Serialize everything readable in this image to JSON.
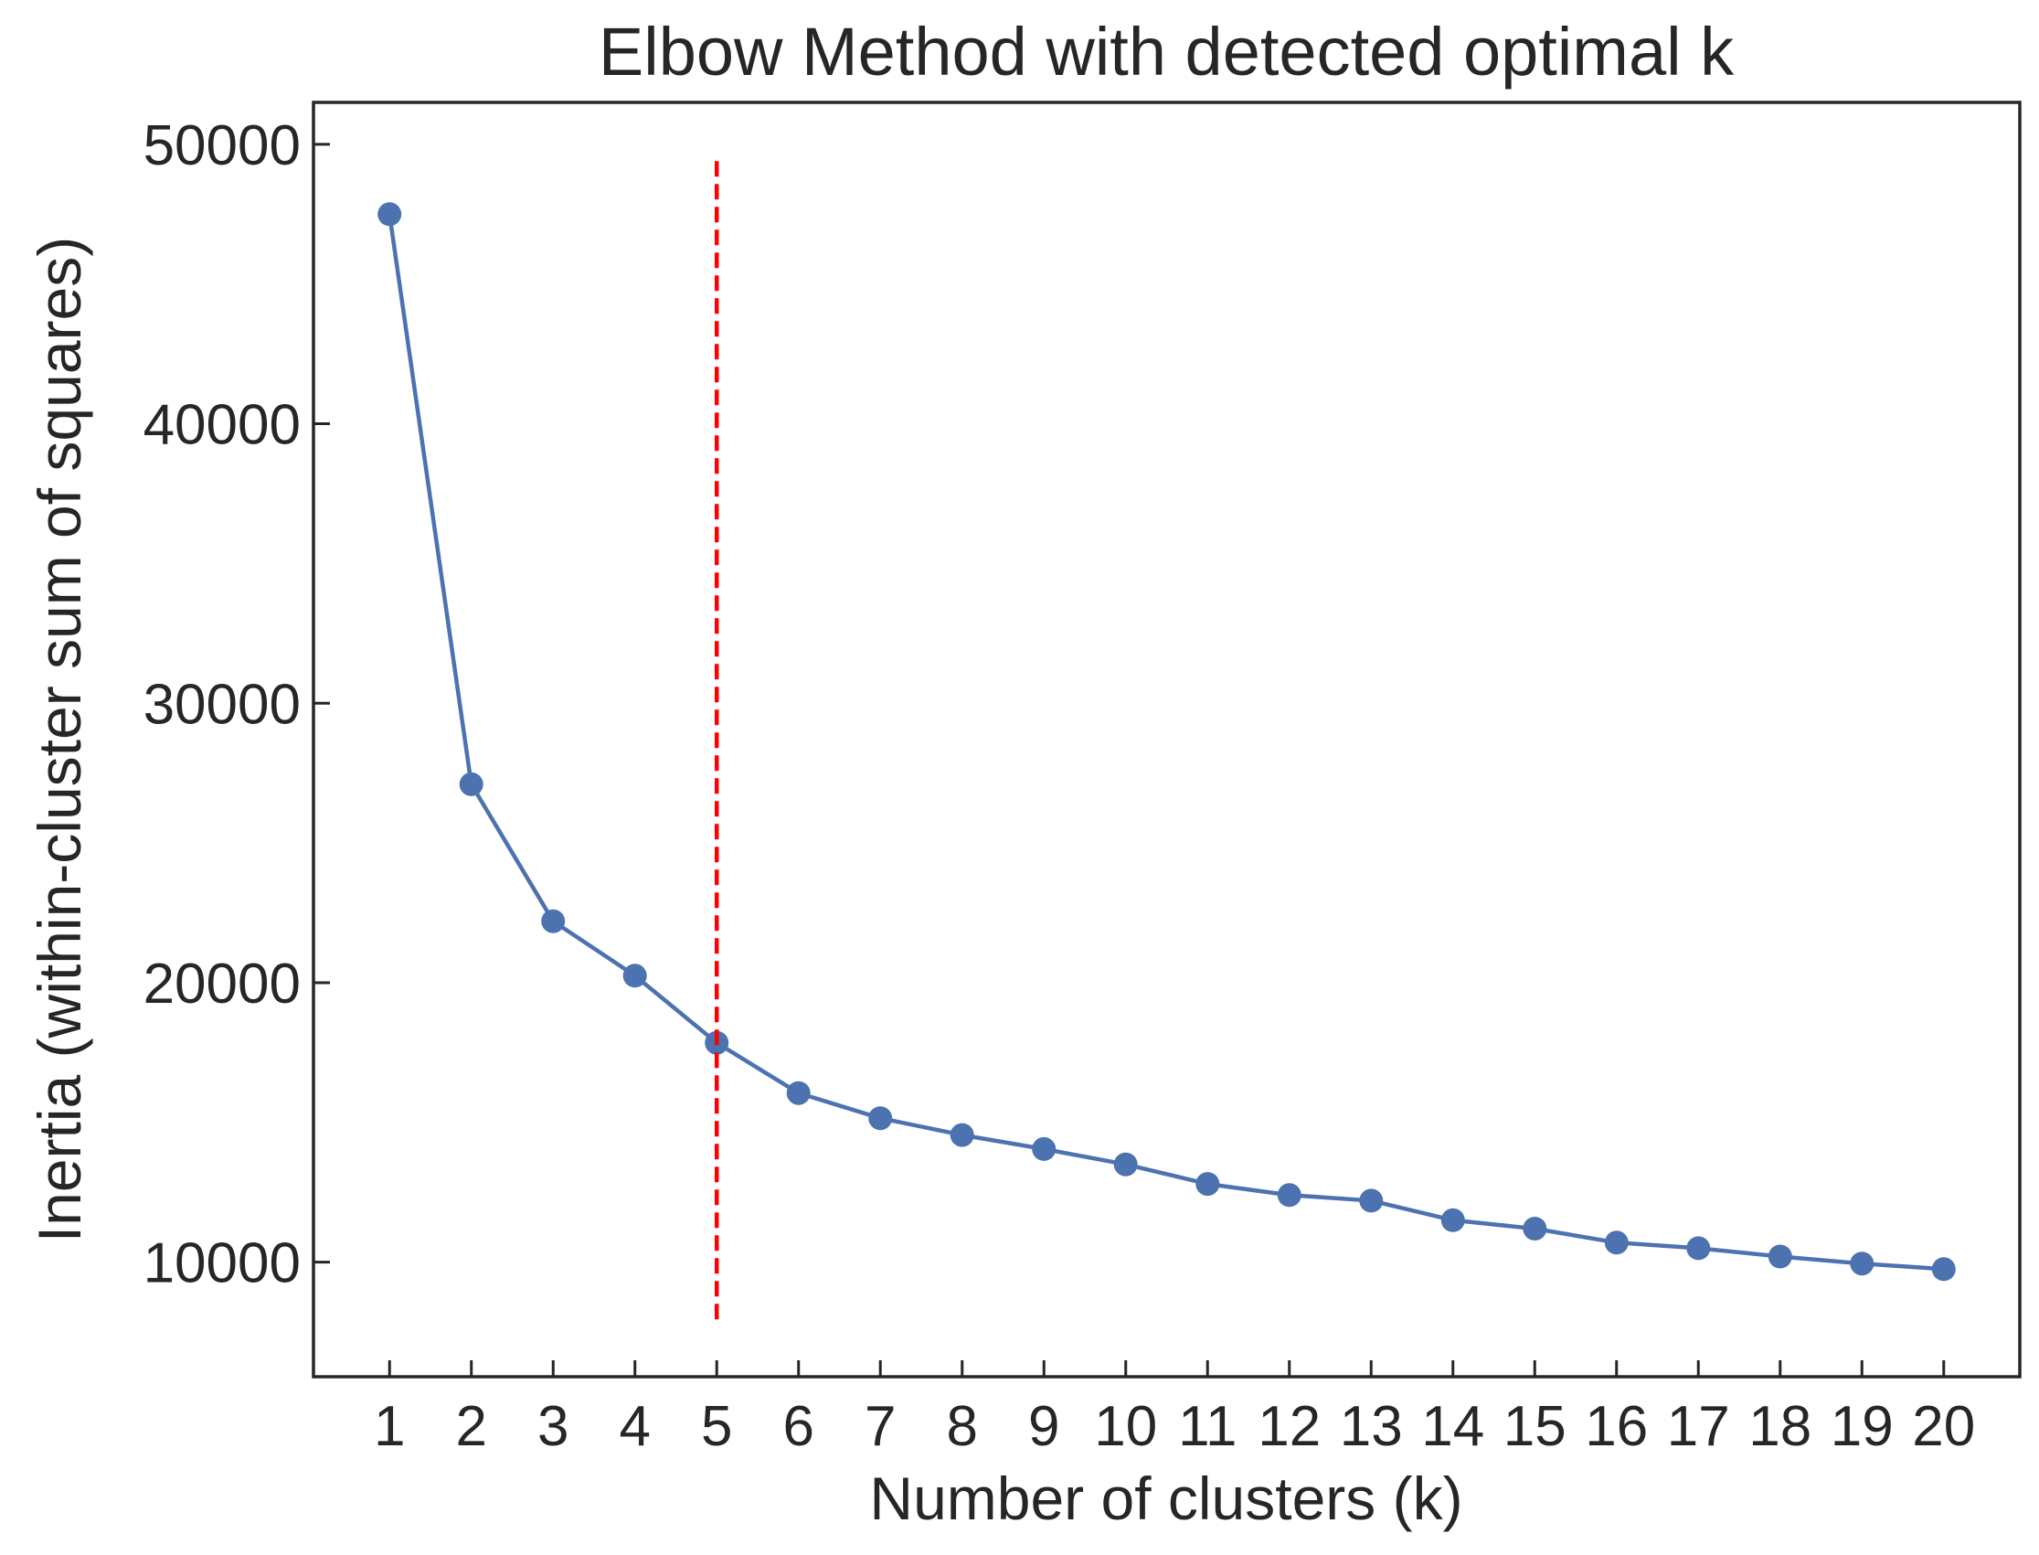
{
  "chart_data": {
    "type": "line",
    "title": "Elbow Method with detected optimal k",
    "xlabel": "Number of clusters (k)",
    "ylabel": "Inertia (within-cluster sum of squares)",
    "x": [
      1,
      2,
      3,
      4,
      5,
      6,
      7,
      8,
      9,
      10,
      11,
      12,
      13,
      14,
      15,
      16,
      17,
      18,
      19,
      20
    ],
    "series": [
      {
        "values": [
          47500,
          27100,
          22200,
          20250,
          17850,
          16050,
          15150,
          14550,
          14050,
          13500,
          12800,
          12400,
          12200,
          11500,
          11200,
          10700,
          10500,
          10200,
          9950,
          9750
        ],
        "color": "#4c72b0"
      }
    ],
    "xticks": [
      "1",
      "2",
      "3",
      "4",
      "5",
      "6",
      "7",
      "8",
      "9",
      "10",
      "11",
      "12",
      "13",
      "14",
      "15",
      "16",
      "17",
      "18",
      "19",
      "20"
    ],
    "yticks": [
      "10000",
      "20000",
      "30000",
      "40000",
      "50000"
    ],
    "ytick_values": [
      10000,
      20000,
      30000,
      40000,
      50000
    ],
    "xlim": [
      0.07,
      20.93
    ],
    "ylim": [
      5900,
      51500
    ],
    "vline": {
      "x": 5,
      "ymin": 7800,
      "ymax": 49400,
      "style": "dashed",
      "color": "#ff0000"
    },
    "grid": false,
    "legend": "none",
    "axes_color": "#262626"
  }
}
